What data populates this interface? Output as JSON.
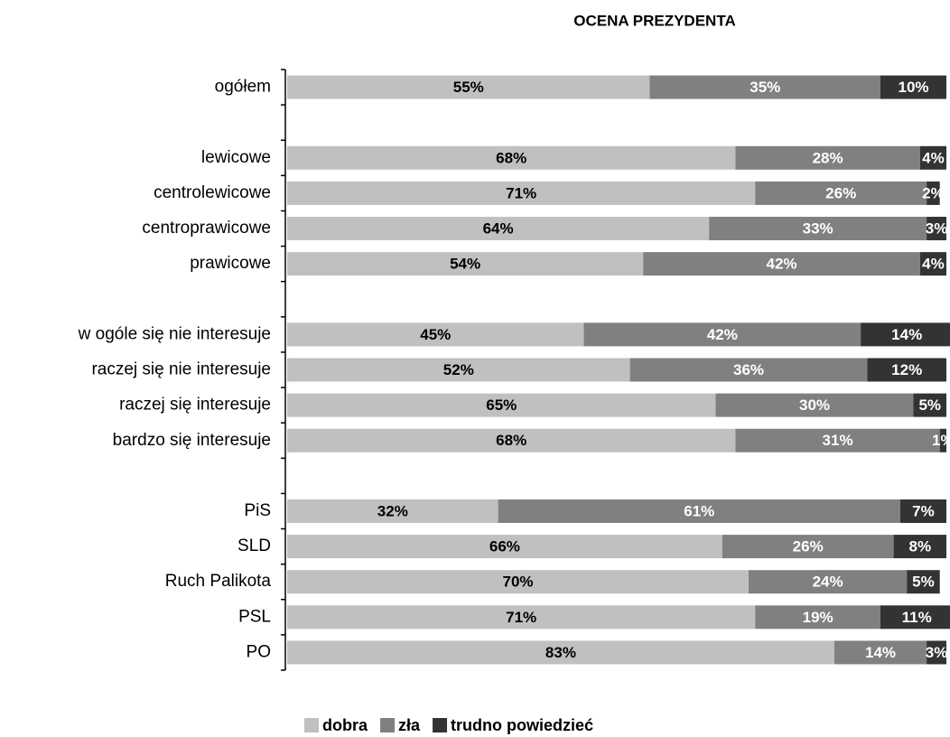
{
  "chart_data": {
    "type": "stacked-barh",
    "title": "OCENA PREZYDENTA",
    "categories": [
      "ogółem",
      null,
      "lewicowe",
      "centrolewicowe",
      "centroprawicowe",
      "prawicowe",
      null,
      "w ogóle się nie interesuje",
      "raczej się nie interesuje",
      "raczej się interesuje",
      "bardzo się interesuje",
      null,
      "PiS",
      "SLD",
      "Ruch Palikota",
      "PSL",
      "PO"
    ],
    "series": [
      {
        "name": "dobra",
        "color": "#c0c0c0",
        "label_color": "#000000",
        "values": [
          55,
          null,
          68,
          71,
          64,
          54,
          null,
          45,
          52,
          65,
          68,
          null,
          32,
          66,
          70,
          71,
          83
        ],
        "value_labels": [
          "55%",
          null,
          "68%",
          "71%",
          "64%",
          "54%",
          null,
          "45%",
          "52%",
          "65%",
          "68%",
          null,
          "32%",
          "66%",
          "70%",
          "71%",
          "83%"
        ]
      },
      {
        "name": "zła",
        "color": "#808080",
        "label_color": "#ffffff",
        "values": [
          35,
          null,
          28,
          26,
          33,
          42,
          null,
          42,
          36,
          30,
          31,
          null,
          61,
          26,
          24,
          19,
          14
        ],
        "value_labels": [
          "35%",
          null,
          "28%",
          "26%",
          "33%",
          "42%",
          null,
          "42%",
          "36%",
          "30%",
          "31%",
          null,
          "61%",
          "26%",
          "24%",
          "19%",
          "14%"
        ]
      },
      {
        "name": "trudno powiedzieć",
        "color": "#333333",
        "label_color": "#ffffff",
        "values": [
          10,
          null,
          4,
          2,
          3,
          4,
          null,
          14,
          12,
          5,
          1,
          null,
          7,
          8,
          5,
          11,
          3
        ],
        "value_labels": [
          "10%",
          null,
          "4%",
          "2%",
          "3%",
          "4%",
          null,
          "14%",
          "12%",
          "5%",
          "1%",
          null,
          "7%",
          "8%",
          "5%",
          "11%",
          "3%"
        ]
      }
    ],
    "xlim": [
      0,
      100
    ],
    "legend": "bottom"
  }
}
